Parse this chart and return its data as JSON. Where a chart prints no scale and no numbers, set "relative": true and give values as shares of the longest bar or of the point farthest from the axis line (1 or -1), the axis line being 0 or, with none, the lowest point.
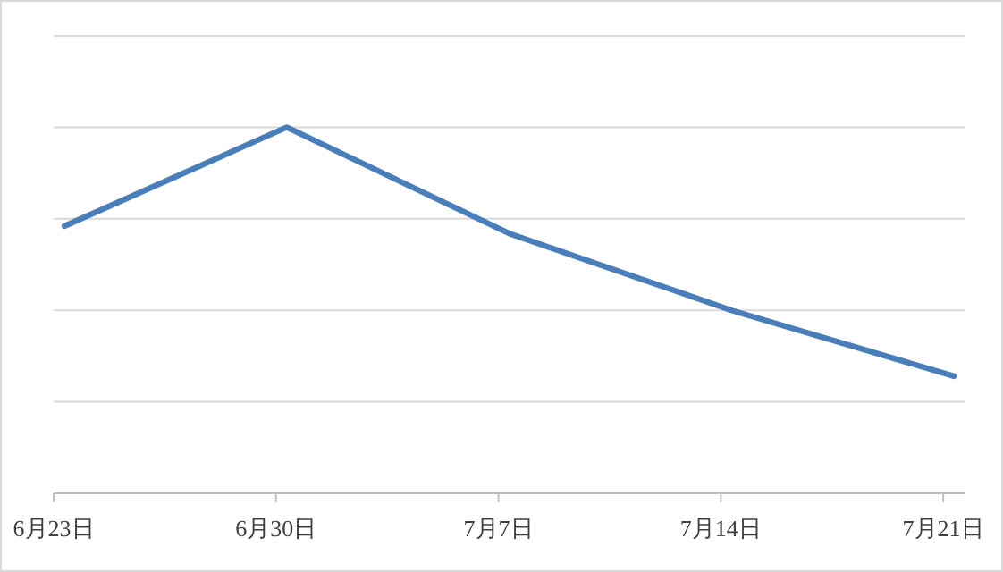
{
  "chart_data": {
    "type": "line",
    "relative": true,
    "grid": "y",
    "categories": [
      "6月23日",
      "6月30日",
      "7月7日",
      "7月14日",
      "7月21日"
    ],
    "series": [
      {
        "color": "#4a7ebb",
        "values": [
          0.73,
          1,
          0.71,
          0.5,
          0.32
        ]
      }
    ]
  }
}
